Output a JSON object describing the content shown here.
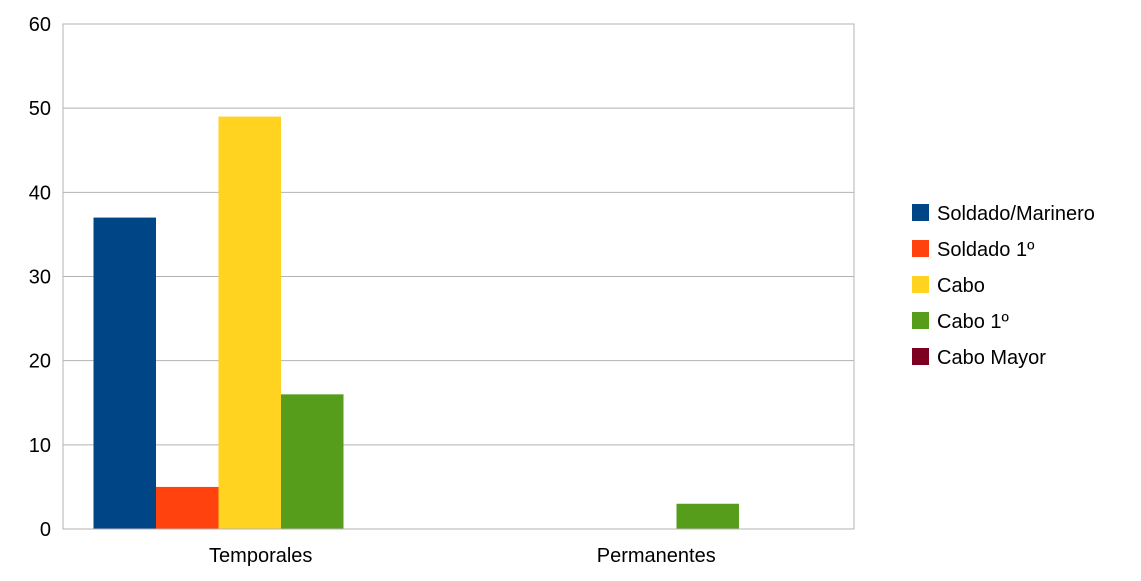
{
  "chart_data": {
    "type": "bar",
    "title": "",
    "xlabel": "",
    "ylabel": "",
    "categories": [
      "Temporales",
      "Permanentes"
    ],
    "series": [
      {
        "name": "Soldado/Marinero",
        "color": "#004586",
        "values": [
          37,
          0
        ]
      },
      {
        "name": "Soldado 1º",
        "color": "#ff420e",
        "values": [
          5,
          0
        ]
      },
      {
        "name": "Cabo",
        "color": "#ffd320",
        "values": [
          49,
          0
        ]
      },
      {
        "name": "Cabo 1º",
        "color": "#579d1c",
        "values": [
          16,
          3
        ]
      },
      {
        "name": "Cabo Mayor",
        "color": "#7e0021",
        "values": [
          0,
          0
        ]
      }
    ],
    "ylim": [
      0,
      60
    ],
    "yticks": [
      0,
      10,
      20,
      30,
      40,
      50,
      60
    ],
    "grid": true,
    "legend_position": "right"
  }
}
